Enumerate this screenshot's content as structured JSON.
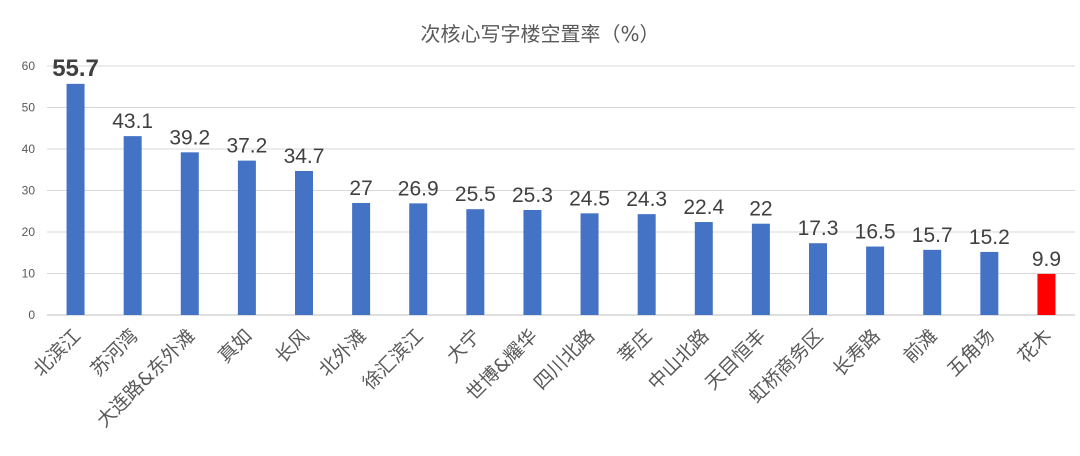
{
  "chart_data": {
    "type": "bar",
    "title": "次核心写字楼空置率（%）",
    "xlabel": "",
    "ylabel": "",
    "ylim": [
      0,
      60
    ],
    "yticks": [
      "0",
      "10",
      "20",
      "30",
      "40",
      "50",
      "60"
    ],
    "grid": true,
    "legend": "none",
    "categories": [
      "北滨江",
      "苏河湾",
      "大连路&东外滩",
      "真如",
      "长风",
      "北外滩",
      "徐汇滨江",
      "大宁",
      "世博&耀华",
      "四川北路",
      "莘庄",
      "中山北路",
      "天目恒丰",
      "虹桥商务区",
      "长寿路",
      "前滩",
      "五角场",
      "花木"
    ],
    "values": [
      55.7,
      43.1,
      39.2,
      37.2,
      34.7,
      27,
      26.9,
      25.5,
      25.3,
      24.5,
      24.3,
      22.4,
      22,
      17.3,
      16.5,
      15.7,
      15.2,
      9.9
    ],
    "value_labels": [
      "55.7",
      "43.1",
      "39.2",
      "37.2",
      "34.7",
      "27",
      "26.9",
      "25.5",
      "25.3",
      "24.5",
      "24.3",
      "22.4",
      "22",
      "17.3",
      "16.5",
      "15.7",
      "15.2",
      "9.9"
    ],
    "colors": {
      "default": "#4472c4",
      "highlight": "#ff0000",
      "highlight_category": "花木"
    }
  }
}
